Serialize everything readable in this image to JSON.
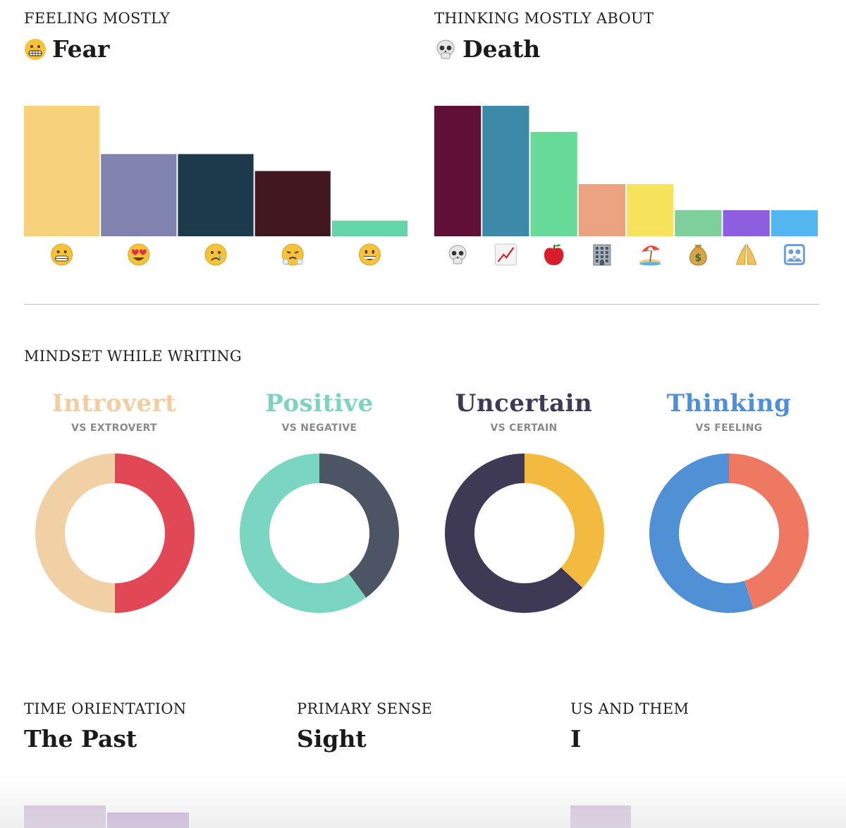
{
  "feeling": {
    "label": "FEELING MOSTLY",
    "value": "Fear",
    "value_icon": "grimacing-face-icon"
  },
  "thinking": {
    "label": "THINKING MOSTLY ABOUT",
    "value": "Death",
    "value_icon": "skull-icon"
  },
  "mindset": {
    "label": "MINDSET WHILE WRITING",
    "items": [
      {
        "title": "Introvert",
        "subtitle": "VS EXTROVERT",
        "title_color": "#f2cda2"
      },
      {
        "title": "Positive",
        "subtitle": "VS NEGATIVE",
        "title_color": "#7dd3c0"
      },
      {
        "title": "Uncertain",
        "subtitle": "VS CERTAIN",
        "title_color": "#3d3a57"
      },
      {
        "title": "Thinking",
        "subtitle": "VS FEELING",
        "title_color": "#4f8fd8"
      }
    ]
  },
  "stats": [
    {
      "label": "TIME ORIENTATION",
      "value": "The Past"
    },
    {
      "label": "PRIMARY SENSE",
      "value": "Sight"
    },
    {
      "label": "US AND THEM",
      "value": "I"
    }
  ],
  "chart_data": [
    {
      "type": "bar",
      "title": "FEELING MOSTLY",
      "categories": [
        "grimacing-face-icon",
        "heart-eyes-face-icon",
        "crying-face-icon",
        "steam-nose-face-icon",
        "grinning-face-icon"
      ],
      "values": [
        100,
        63,
        63,
        50,
        12
      ],
      "colors": [
        "#f7d27a",
        "#8083ae",
        "#1b3a4b",
        "#41181f",
        "#63d5a8"
      ],
      "ylim": [
        0,
        100
      ]
    },
    {
      "type": "bar",
      "title": "THINKING MOSTLY ABOUT",
      "categories": [
        "skull-icon",
        "chart-increasing-icon",
        "red-apple-icon",
        "office-building-icon",
        "beach-umbrella-icon",
        "money-bag-icon",
        "folded-hands-icon",
        "family-icon"
      ],
      "values": [
        100,
        100,
        80,
        40,
        40,
        20,
        20,
        20
      ],
      "colors": [
        "#5f1034",
        "#3d8aa8",
        "#68da97",
        "#eaa281",
        "#f7e35c",
        "#7fcf9b",
        "#8d5ee0",
        "#54b6f0"
      ],
      "ylim": [
        0,
        100
      ]
    },
    {
      "type": "pie",
      "title": "Introvert",
      "labels": [
        "Introvert",
        "Extrovert"
      ],
      "values": [
        50,
        50
      ],
      "colors": [
        "#f2d0a6",
        "#e14754"
      ]
    },
    {
      "type": "pie",
      "title": "Positive",
      "labels": [
        "Positive",
        "Negative"
      ],
      "values": [
        60,
        40
      ],
      "colors": [
        "#7ad5c1",
        "#4b5564"
      ]
    },
    {
      "type": "pie",
      "title": "Uncertain",
      "labels": [
        "Uncertain",
        "Certain"
      ],
      "values": [
        63,
        37
      ],
      "colors": [
        "#3e3955",
        "#f2bb3f"
      ]
    },
    {
      "type": "pie",
      "title": "Thinking",
      "labels": [
        "Thinking",
        "Feeling"
      ],
      "values": [
        55,
        45
      ],
      "colors": [
        "#5090d6",
        "#ee7862"
      ]
    },
    {
      "type": "bar",
      "title": "TIME ORIENTATION",
      "categories": [
        "",
        ""
      ],
      "values": [
        32,
        22
      ],
      "colors": [
        "#d4c1de",
        "#c3a9d4"
      ],
      "ylim": [
        0,
        100
      ]
    },
    {
      "type": "bar",
      "title": "US AND THEM",
      "categories": [
        ""
      ],
      "values": [
        32
      ],
      "colors": [
        "#d4c1de"
      ],
      "ylim": [
        0,
        100
      ]
    }
  ]
}
